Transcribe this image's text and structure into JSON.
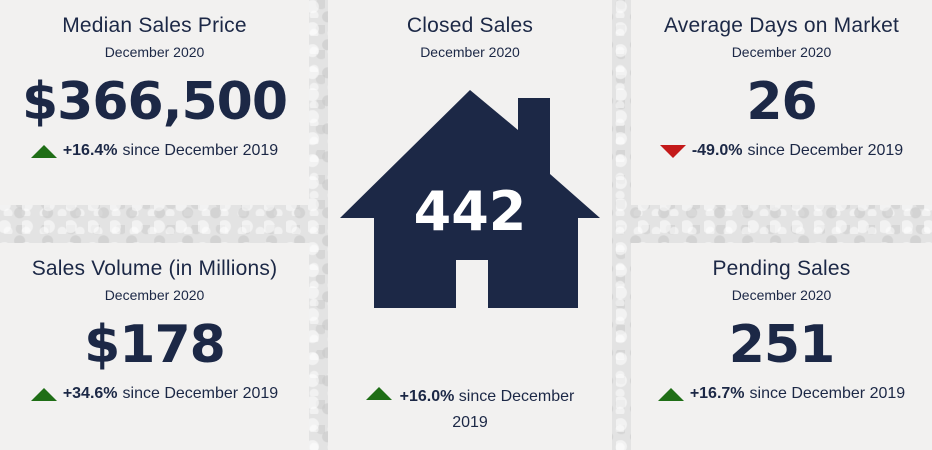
{
  "median_sales_price": {
    "title": "Median Sales Price",
    "period": "December 2020",
    "value": "$366,500",
    "change_pct": "+16.4%",
    "change_text": "since December 2019",
    "direction": "up"
  },
  "sales_volume": {
    "title": "Sales Volume (in Millions)",
    "period": "December 2020",
    "value": "$178",
    "change_pct": "+34.6%",
    "change_text": "since December 2019",
    "direction": "up"
  },
  "closed_sales": {
    "title": "Closed Sales",
    "period": "December 2020",
    "value": "442",
    "change_pct": "+16.0%",
    "change_text": "since December 2019",
    "direction": "up",
    "icon": "house-icon"
  },
  "avg_days_on_market": {
    "title": "Average Days on Market",
    "period": "December 2020",
    "value": "26",
    "change_pct": "-49.0%",
    "change_text": "since December 2019",
    "direction": "down"
  },
  "pending_sales": {
    "title": "Pending Sales",
    "period": "December 2020",
    "value": "251",
    "change_pct": "+16.7%",
    "change_text": "since December 2019",
    "direction": "up"
  },
  "colors": {
    "navy": "#1c2846",
    "up_green": "#1f6e16",
    "down_red": "#c41a1a",
    "card_bg": "#f2f1f0"
  }
}
